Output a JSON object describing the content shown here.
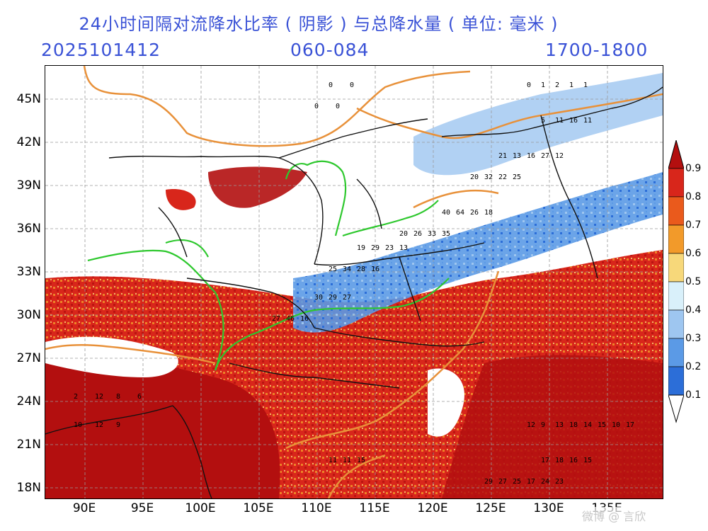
{
  "header": {
    "title": "24小时间隔对流降水比率 ( 阴影 ) 与总降水量 ( 单位: 毫米 )",
    "date": "2025101412",
    "forecast_range": "060-084",
    "region_label": "1700-1800"
  },
  "axes": {
    "lat_labels": [
      "45N",
      "42N",
      "39N",
      "36N",
      "33N",
      "30N",
      "27N",
      "24N",
      "21N",
      "18N"
    ],
    "lon_labels": [
      "90E",
      "95E",
      "100E",
      "105E",
      "110E",
      "115E",
      "120E",
      "125E",
      "130E",
      "135E"
    ]
  },
  "colorbar": {
    "labels": [
      "0.9",
      "0.8",
      "0.7",
      "0.6",
      "0.5",
      "0.4",
      "0.3",
      "0.2",
      "0.1"
    ],
    "colors": [
      "#b30f0f",
      "#d8261b",
      "#ea5a1c",
      "#f29a2a",
      "#f7d87a",
      "#d9f0fa",
      "#9ec6f0",
      "#5b9ae6",
      "#2c6ed8",
      "#1f4fc0"
    ]
  },
  "watermark": "微博 @ 言欣",
  "palette": {
    "title_blue": "#3a52d6",
    "river_green": "#2ec82e",
    "river_orange": "#e8913a",
    "border_black": "#111111"
  }
}
